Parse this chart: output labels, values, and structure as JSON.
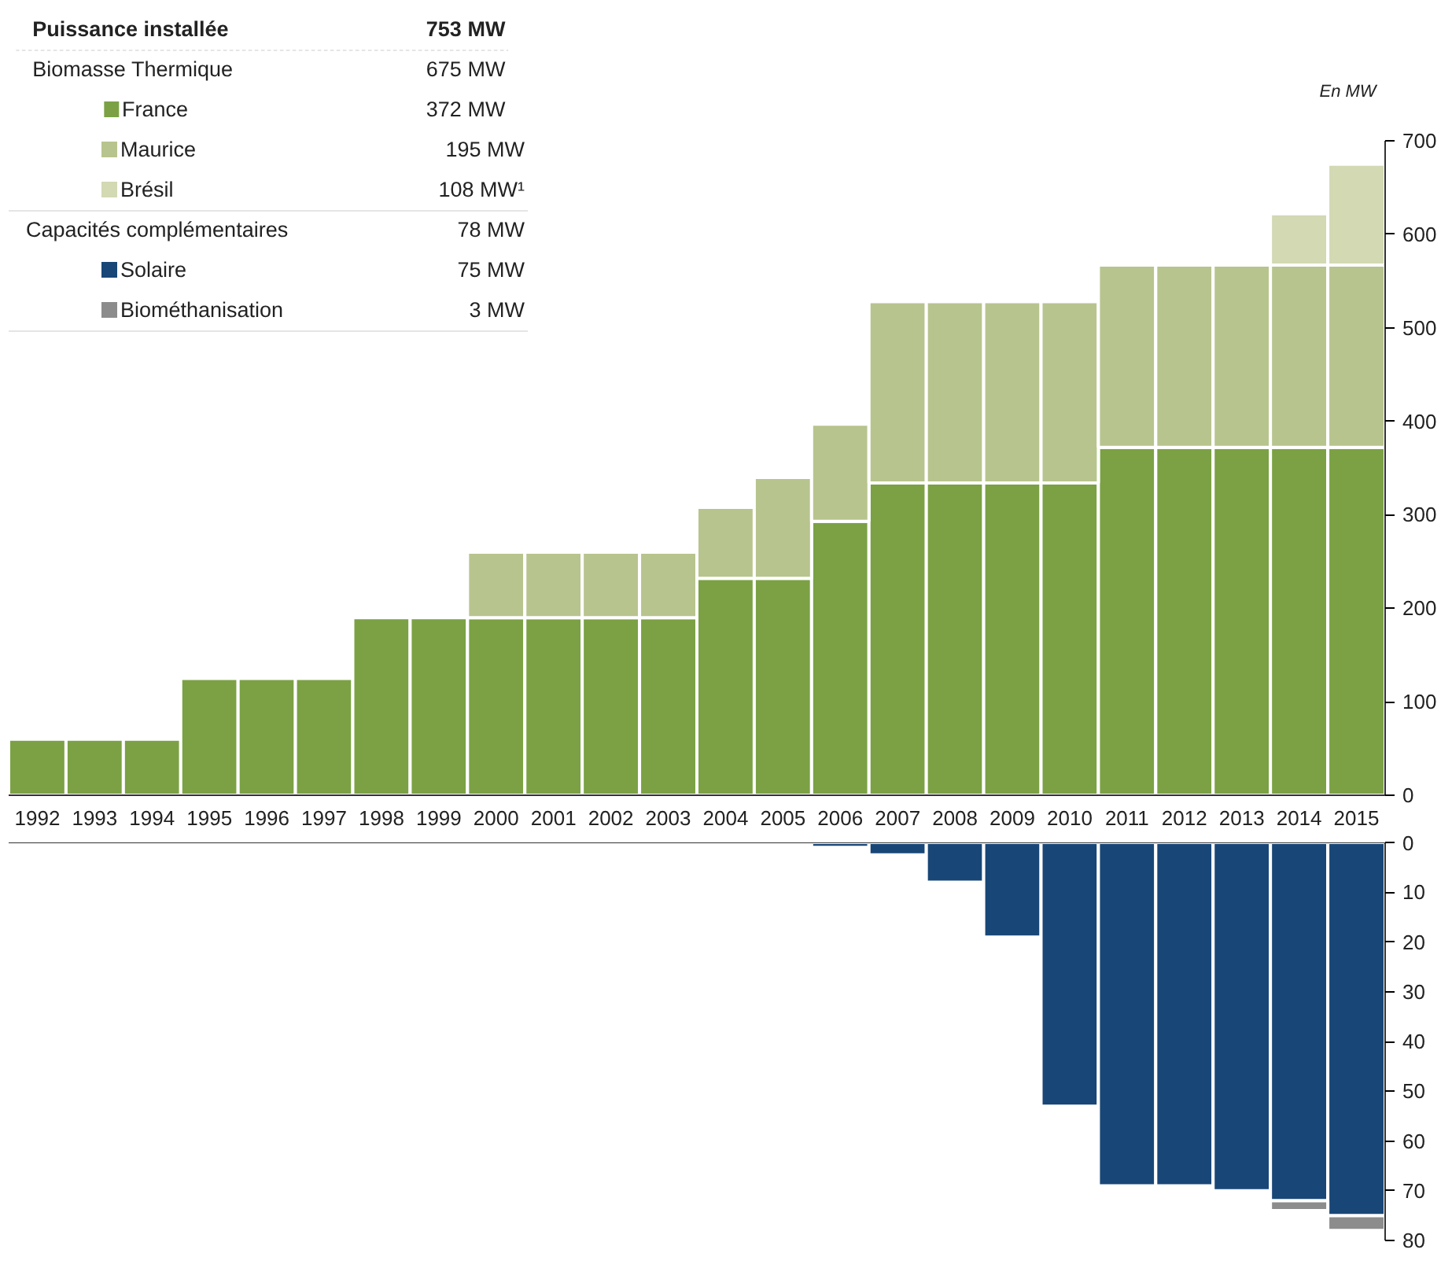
{
  "chart_data": [
    {
      "type": "bar",
      "stacked": true,
      "ylabel": "En MW",
      "legend": "top left",
      "grid": false,
      "categories": [
        "1992",
        "1993",
        "1994",
        "1995",
        "1996",
        "1997",
        "1998",
        "1999",
        "2000",
        "2001",
        "2002",
        "2003",
        "2004",
        "2005",
        "2006",
        "2007",
        "2008",
        "2009",
        "2010",
        "2011",
        "2012",
        "2013",
        "2014",
        "2015"
      ],
      "series": [
        {
          "name": "France",
          "color": "#7ba144",
          "values": [
            60,
            60,
            60,
            125,
            125,
            125,
            190,
            190,
            190,
            190,
            190,
            190,
            232,
            232,
            293,
            334,
            334,
            334,
            334,
            372,
            372,
            372,
            372,
            372
          ]
        },
        {
          "name": "Maurice",
          "color": "#b7c48e",
          "values": [
            null,
            null,
            null,
            null,
            null,
            null,
            null,
            null,
            70,
            70,
            70,
            70,
            76,
            108,
            104,
            194,
            194,
            194,
            194,
            195,
            195,
            195,
            195,
            195
          ]
        },
        {
          "name": "Brésil",
          "color": "#d2d9b3",
          "values": [
            null,
            null,
            null,
            null,
            null,
            null,
            null,
            null,
            null,
            null,
            null,
            null,
            null,
            null,
            null,
            null,
            null,
            null,
            null,
            null,
            null,
            null,
            55,
            108
          ]
        }
      ],
      "ylim": [
        0,
        700
      ],
      "yticks": [
        0,
        100,
        200,
        300,
        400,
        500,
        600,
        700
      ],
      "annotations": [
        "Puissance installée",
        "753 MW",
        "Biomasse Thermique",
        "675 MW",
        "372 MW",
        "195 MW",
        "108 MW¹",
        "Capacités complémentaires",
        "78 MW",
        "75 MW",
        "3 MW"
      ]
    },
    {
      "type": "bar",
      "stacked": true,
      "legend": "top left",
      "grid": false,
      "tick_labels": "y",
      "categories": [
        "1992",
        "1993",
        "1994",
        "1995",
        "1996",
        "1997",
        "1998",
        "1999",
        "2000",
        "2001",
        "2002",
        "2003",
        "2004",
        "2005",
        "2006",
        "2007",
        "2008",
        "2009",
        "2010",
        "2011",
        "2012",
        "2013",
        "2014",
        "2015"
      ],
      "series": [
        {
          "name": "Solaire",
          "color": "#184677",
          "values": [
            null,
            null,
            null,
            null,
            null,
            null,
            null,
            null,
            null,
            null,
            null,
            null,
            null,
            null,
            1,
            2.5,
            8,
            19,
            53,
            69,
            69,
            70,
            72,
            75
          ]
        },
        {
          "name": "Biométhanisation",
          "color": "#8c8c8c",
          "values": [
            null,
            null,
            null,
            null,
            null,
            null,
            null,
            null,
            null,
            null,
            null,
            null,
            null,
            null,
            null,
            null,
            null,
            null,
            null,
            null,
            null,
            null,
            2,
            3
          ]
        }
      ],
      "ylim": [
        80,
        0
      ],
      "yticks": [
        0,
        10,
        20,
        30,
        40,
        50,
        60,
        70,
        80
      ]
    }
  ]
}
